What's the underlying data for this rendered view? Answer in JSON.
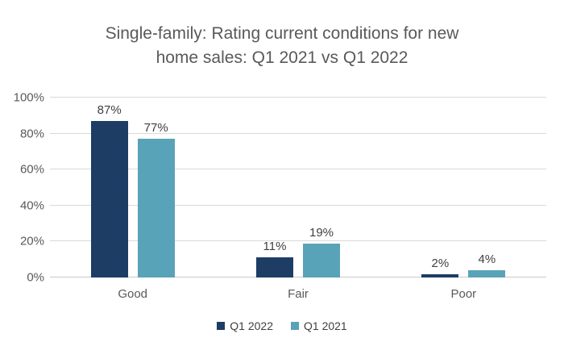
{
  "chart": {
    "title": "Single-family: Rating current conditions for new home sales: Q1 2021 vs Q1 2022",
    "title_lines": [
      "Single-family: Rating current conditions for new",
      "home sales: Q1 2021 vs Q1 2022"
    ]
  },
  "chart_data": {
    "type": "bar",
    "title": "Single-family: Rating current conditions for new home sales: Q1 2021 vs Q1 2022",
    "categories": [
      "Good",
      "Fair",
      "Poor"
    ],
    "series": [
      {
        "name": "Q1 2022",
        "color": "#1d3d64",
        "values": [
          87,
          11,
          2
        ],
        "labels": [
          "87%",
          "11%",
          "2%"
        ]
      },
      {
        "name": "Q1 2021",
        "color": "#59a3b8",
        "values": [
          77,
          19,
          4
        ],
        "labels": [
          "77%",
          "19%",
          "4%"
        ]
      }
    ],
    "xlabel": "",
    "ylabel": "",
    "ylim": [
      0,
      100
    ],
    "yticks": [
      0,
      20,
      40,
      60,
      80,
      100
    ],
    "ytick_labels": [
      "0%",
      "20%",
      "40%",
      "60%",
      "80%",
      "100%"
    ],
    "grid": true,
    "legend_position": "bottom",
    "colors": {
      "title_text": "#595959",
      "axis_text": "#595959",
      "data_label_text": "#404040",
      "gridline": "#d9d9d9",
      "background": "#ffffff"
    }
  }
}
